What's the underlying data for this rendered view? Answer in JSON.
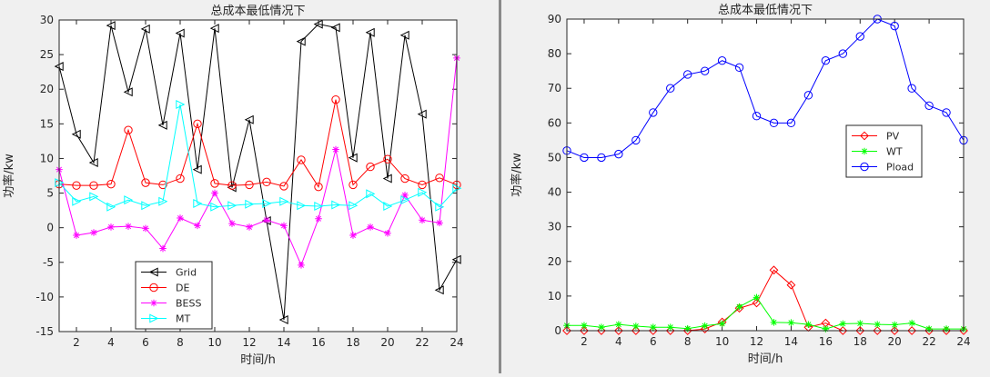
{
  "chart_data": [
    {
      "type": "line",
      "title": "总成本最低情况下",
      "xlabel": "时间/h",
      "ylabel": "功率/kw",
      "xlim": [
        1,
        24
      ],
      "ylim": [
        -15,
        30
      ],
      "xticks": [
        2,
        4,
        6,
        8,
        10,
        12,
        14,
        16,
        18,
        20,
        22,
        24
      ],
      "yticks": [
        -15,
        -10,
        -5,
        0,
        5,
        10,
        15,
        20,
        25,
        30
      ],
      "legend_position": "bottom-center",
      "x": [
        1,
        2,
        3,
        4,
        5,
        6,
        7,
        8,
        9,
        10,
        11,
        12,
        13,
        14,
        15,
        16,
        17,
        18,
        19,
        20,
        21,
        22,
        23,
        24
      ],
      "series": [
        {
          "name": "Grid",
          "color": "#000000",
          "marker": "triangle-left",
          "values": [
            23.3,
            13.5,
            9.4,
            29.2,
            19.6,
            28.7,
            14.8,
            28.1,
            8.4,
            28.8,
            5.8,
            15.6,
            1.0,
            -13.3,
            26.9,
            29.4,
            28.9,
            10.1,
            28.2,
            7.1,
            27.8,
            16.4,
            -9.0,
            -4.6
          ]
        },
        {
          "name": "DE",
          "color": "#ff0000",
          "marker": "circle",
          "values": [
            6.3,
            6.1,
            6.1,
            6.3,
            14.1,
            6.5,
            6.2,
            7.1,
            15.0,
            6.4,
            6.1,
            6.2,
            6.6,
            6.0,
            9.8,
            5.9,
            18.5,
            6.2,
            8.8,
            9.9,
            7.1,
            6.2,
            7.2,
            6.2
          ]
        },
        {
          "name": "BESS",
          "color": "#ff00ff",
          "marker": "star",
          "values": [
            8.4,
            -1.1,
            -0.7,
            0.1,
            0.2,
            -0.1,
            -3.0,
            1.4,
            0.3,
            5.0,
            0.6,
            0.1,
            1.1,
            0.3,
            -5.4,
            1.3,
            11.3,
            -1.1,
            0.1,
            -0.8,
            4.7,
            1.1,
            0.7,
            24.5
          ]
        },
        {
          "name": "MT",
          "color": "#00ffff",
          "marker": "triangle-right",
          "values": [
            6.5,
            3.8,
            4.5,
            3.0,
            4.0,
            3.2,
            3.8,
            17.8,
            3.5,
            3.0,
            3.2,
            3.4,
            3.5,
            3.8,
            3.2,
            3.1,
            3.3,
            3.2,
            4.9,
            3.1,
            4.0,
            5.1,
            3.0,
            5.7
          ]
        }
      ]
    },
    {
      "type": "line",
      "title": "总成本最低情况下",
      "xlabel": "时间/h",
      "ylabel": "功率/kw",
      "xlim": [
        1,
        24
      ],
      "ylim": [
        0,
        90
      ],
      "xticks": [
        2,
        4,
        6,
        8,
        10,
        12,
        14,
        16,
        18,
        20,
        22,
        24
      ],
      "yticks": [
        0,
        10,
        20,
        30,
        40,
        50,
        60,
        70,
        80,
        90
      ],
      "legend_position": "middle-right",
      "x": [
        1,
        2,
        3,
        4,
        5,
        6,
        7,
        8,
        9,
        10,
        11,
        12,
        13,
        14,
        15,
        16,
        17,
        18,
        19,
        20,
        21,
        22,
        23,
        24
      ],
      "series": [
        {
          "name": "PV",
          "color": "#ff0000",
          "marker": "diamond",
          "values": [
            0,
            0,
            0,
            0,
            0,
            0,
            0,
            0,
            0.5,
            2.5,
            6.5,
            8.0,
            17.5,
            13.2,
            1.0,
            2.2,
            0,
            0,
            0,
            0,
            0,
            0,
            0,
            0
          ]
        },
        {
          "name": "WT",
          "color": "#00ff00",
          "marker": "star",
          "values": [
            1.5,
            1.5,
            1.0,
            1.8,
            1.3,
            1.0,
            1.0,
            0.6,
            1.4,
            2.0,
            6.9,
            9.6,
            2.4,
            2.3,
            1.8,
            0.5,
            2.0,
            2.1,
            1.8,
            1.7,
            2.2,
            0.5,
            0.5,
            0.5
          ]
        },
        {
          "name": "Pload",
          "color": "#0000ff",
          "marker": "circle",
          "values": [
            52,
            50,
            50,
            51,
            55,
            63,
            70,
            74,
            75,
            78,
            76,
            62,
            60,
            60,
            68,
            78,
            80,
            85,
            90,
            88,
            70,
            65,
            63,
            55
          ]
        }
      ]
    }
  ]
}
